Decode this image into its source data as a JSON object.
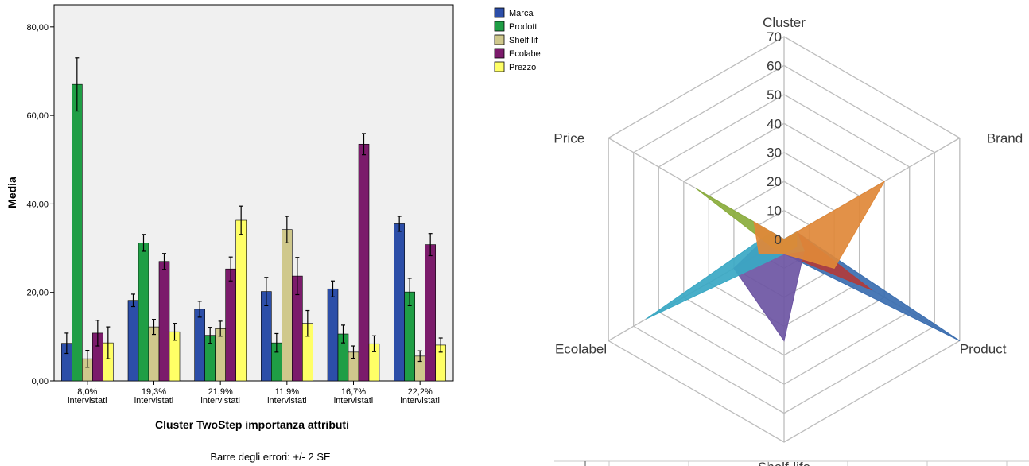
{
  "chart_data": [
    {
      "type": "bar",
      "xlabel": "Cluster TwoStep importanza attributi",
      "ylabel": "Media",
      "footer": "Barre degli errori: +/- 2 SE",
      "ylim": [
        0,
        85
      ],
      "yticks": [
        "0,00",
        "20,00",
        "40,00",
        "60,00",
        "80,00"
      ],
      "ytick_values": [
        0,
        20,
        40,
        60,
        80
      ],
      "grid": false,
      "legend_position": "top-right",
      "categories": [
        [
          "8,0%",
          "intervistati"
        ],
        [
          "19,3%",
          "intervistati"
        ],
        [
          "21,9%",
          "intervistati"
        ],
        [
          "11,9%",
          "intervistati"
        ],
        [
          "16,7%",
          "intervistati"
        ],
        [
          "22,2%",
          "intervistati"
        ]
      ],
      "series": [
        {
          "name": "Marca",
          "color": "#2c4ea8",
          "values": [
            8.5,
            18.2,
            16.2,
            20.2,
            20.8,
            35.5
          ],
          "errors": [
            2.3,
            1.4,
            1.8,
            3.2,
            1.8,
            1.7
          ]
        },
        {
          "name": "Prodotto",
          "color": "#1f9e45",
          "values": [
            67.0,
            31.2,
            10.3,
            8.6,
            10.6,
            20.1
          ],
          "errors": [
            6.0,
            1.9,
            1.8,
            2.1,
            2.0,
            3.1
          ]
        },
        {
          "name": "Shelf life",
          "color": "#cfc88c",
          "values": [
            5.0,
            12.2,
            11.8,
            34.2,
            6.5,
            5.6
          ],
          "errors": [
            1.9,
            1.7,
            1.7,
            3.0,
            1.4,
            1.2
          ]
        },
        {
          "name": "Ecolabel",
          "color": "#7b1b6b",
          "values": [
            10.8,
            27.0,
            25.3,
            23.7,
            53.5,
            30.8
          ],
          "errors": [
            2.9,
            1.8,
            2.7,
            4.2,
            2.4,
            2.5
          ]
        },
        {
          "name": "Prezzo",
          "color": "#ffff66",
          "values": [
            8.6,
            11.1,
            36.3,
            13.0,
            8.4,
            8.1
          ],
          "errors": [
            3.6,
            1.9,
            3.2,
            2.9,
            1.8,
            1.6
          ]
        }
      ],
      "legend_labels": [
        "Marca",
        "Prodott",
        "Shelf lif",
        "Ecolabe",
        "Prezzo"
      ]
    },
    {
      "type": "radar",
      "title": "Cluster",
      "axes": [
        "Cluster",
        "Brand",
        "Product",
        "Shelf-life",
        "Ecolabel",
        "Price"
      ],
      "rmax": 70,
      "ticks": [
        0,
        10,
        20,
        30,
        40,
        50,
        60,
        70
      ],
      "series": [
        {
          "color": "#3b6eb0",
          "values": [
            0,
            5,
            70,
            5,
            5,
            5
          ]
        },
        {
          "color": "#b03c3c",
          "values": [
            0,
            5,
            35,
            5,
            5,
            5
          ]
        },
        {
          "color": "#6d55a3",
          "values": [
            0,
            5,
            8,
            35,
            20,
            5
          ]
        },
        {
          "color": "#3aa8c4",
          "values": [
            0,
            5,
            8,
            5,
            55,
            5
          ]
        },
        {
          "color": "#8aac3c",
          "values": [
            0,
            5,
            5,
            5,
            5,
            35
          ]
        },
        {
          "color": "#e08838",
          "values": [
            0,
            40,
            20,
            5,
            10,
            12
          ]
        }
      ]
    }
  ]
}
